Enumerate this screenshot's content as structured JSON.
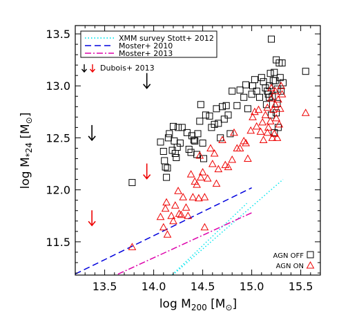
{
  "chart_data": {
    "type": "scatter",
    "title": "",
    "xlabel_main": "log M",
    "xlabel_sub": "200",
    "xlabel_unit_pre": "[M",
    "xlabel_unit_post": "]",
    "ylabel_main": "log M",
    "ylabel_sub": "*24",
    "ylabel_unit_pre": "[M",
    "ylabel_unit_post": "]",
    "xlim": [
      13.2,
      15.7
    ],
    "ylim": [
      11.18,
      13.58
    ],
    "xticks": [
      "13.5",
      "14.0",
      "14.5",
      "15.0",
      "15.5"
    ],
    "yticks": [
      "11.5",
      "12.0",
      "12.5",
      "13.0",
      "13.5"
    ],
    "legend": {
      "position": "top-left",
      "entries": [
        {
          "label": "XMM survey Stott+ 2012",
          "color": "#00e5ee",
          "dash": "dotted"
        },
        {
          "label": "Moster+ 2010",
          "color": "#0000dd",
          "dash": "dashed"
        },
        {
          "label": "Moster+ 2013",
          "color": "#dd00aa",
          "dash": "dashdot"
        }
      ],
      "dubois_label": "Dubois+ 2013"
    },
    "corner_legend": {
      "position": "bottom-right",
      "agn_off": "AGN OFF",
      "agn_on": "AGN ON"
    },
    "lines": [
      {
        "name": "XMM survey Stott+ 2012",
        "color": "#00e5ee",
        "dash": "dotted",
        "x": [
          14.12,
          15.32
        ],
        "y": [
          11.12,
          12.1
        ]
      },
      {
        "name": "XMM survey Stott+ 2012",
        "color": "#00e5ee",
        "dash": "dotted",
        "x": [
          14.12,
          14.95
        ],
        "y": [
          11.12,
          11.87
        ]
      },
      {
        "name": "Moster+ 2010",
        "color": "#0000dd",
        "dash": "dashed",
        "x": [
          13.2,
          15.0
        ],
        "y": [
          11.19,
          12.02
        ]
      },
      {
        "name": "Moster+ 2013",
        "color": "#dd00aa",
        "dash": "dashdot",
        "x": [
          13.2,
          15.0
        ],
        "y": [
          11.0,
          11.78
        ]
      }
    ],
    "arrows": {
      "color_off": "#000000",
      "color_on": "#ee0000",
      "off": [
        {
          "x": 13.93,
          "y": 13.05
        },
        {
          "x": 13.37,
          "y": 12.55
        }
      ],
      "on": [
        {
          "x": 13.93,
          "y": 12.18
        },
        {
          "x": 13.37,
          "y": 11.73
        }
      ]
    },
    "series": [
      {
        "name": "AGN OFF",
        "marker": "square",
        "color": "#000000",
        "points": [
          [
            13.78,
            12.07
          ],
          [
            14.07,
            12.46
          ],
          [
            14.1,
            12.37
          ],
          [
            14.11,
            12.28
          ],
          [
            14.12,
            12.22
          ],
          [
            14.13,
            12.12
          ],
          [
            14.14,
            12.21
          ],
          [
            14.15,
            12.5
          ],
          [
            14.16,
            12.54
          ],
          [
            14.19,
            12.38
          ],
          [
            14.2,
            12.61
          ],
          [
            14.21,
            12.47
          ],
          [
            14.22,
            12.35
          ],
          [
            14.23,
            12.31
          ],
          [
            14.24,
            12.41
          ],
          [
            14.25,
            12.6
          ],
          [
            14.27,
            12.45
          ],
          [
            14.29,
            12.6
          ],
          [
            14.34,
            12.55
          ],
          [
            14.36,
            12.39
          ],
          [
            14.38,
            12.36
          ],
          [
            14.39,
            12.52
          ],
          [
            14.41,
            12.48
          ],
          [
            14.42,
            12.47
          ],
          [
            14.44,
            12.34
          ],
          [
            14.45,
            12.54
          ],
          [
            14.47,
            12.66
          ],
          [
            14.48,
            12.82
          ],
          [
            14.5,
            12.45
          ],
          [
            14.51,
            12.3
          ],
          [
            14.53,
            12.72
          ],
          [
            14.57,
            12.71
          ],
          [
            14.59,
            12.6
          ],
          [
            14.62,
            12.63
          ],
          [
            14.64,
            12.78
          ],
          [
            14.66,
            12.64
          ],
          [
            14.68,
            12.5
          ],
          [
            14.7,
            12.8
          ],
          [
            14.72,
            12.68
          ],
          [
            14.74,
            12.81
          ],
          [
            14.76,
            12.72
          ],
          [
            14.78,
            12.54
          ],
          [
            14.8,
            12.95
          ],
          [
            14.85,
            12.81
          ],
          [
            14.88,
            12.96
          ],
          [
            14.92,
            12.89
          ],
          [
            14.94,
            13.01
          ],
          [
            14.96,
            12.78
          ],
          [
            15.0,
            12.92
          ],
          [
            15.01,
            13.0
          ],
          [
            15.03,
            13.06
          ],
          [
            15.05,
            12.95
          ],
          [
            15.08,
            12.89
          ],
          [
            15.1,
            13.08
          ],
          [
            15.12,
            13.04
          ],
          [
            15.14,
            12.98
          ],
          [
            15.16,
            12.95
          ],
          [
            15.17,
            12.92
          ],
          [
            15.18,
            13.0
          ],
          [
            15.19,
            13.12
          ],
          [
            15.2,
            13.45
          ],
          [
            15.21,
            12.9
          ],
          [
            15.22,
            13.05
          ],
          [
            15.23,
            12.55
          ],
          [
            15.24,
            13.05
          ],
          [
            15.25,
            13.25
          ],
          [
            15.26,
            12.97
          ],
          [
            15.27,
            12.6
          ],
          [
            15.28,
            13.22
          ],
          [
            15.29,
            13.08
          ],
          [
            15.3,
            12.95
          ],
          [
            15.31,
            13.22
          ],
          [
            15.32,
            13.03
          ],
          [
            15.55,
            13.14
          ],
          [
            15.2,
            12.72
          ],
          [
            15.26,
            12.83
          ],
          [
            15.18,
            12.89
          ],
          [
            15.15,
            12.82
          ],
          [
            15.25,
            12.74
          ],
          [
            15.23,
            13.13
          ]
        ]
      },
      {
        "name": "AGN ON",
        "marker": "triangle",
        "color": "#ee0000",
        "points": [
          [
            13.78,
            11.45
          ],
          [
            14.07,
            11.74
          ],
          [
            14.1,
            11.64
          ],
          [
            14.12,
            11.82
          ],
          [
            14.13,
            11.88
          ],
          [
            14.14,
            11.57
          ],
          [
            14.18,
            11.75
          ],
          [
            14.2,
            11.7
          ],
          [
            14.22,
            11.85
          ],
          [
            14.25,
            11.99
          ],
          [
            14.26,
            11.77
          ],
          [
            14.28,
            11.76
          ],
          [
            14.3,
            11.93
          ],
          [
            14.33,
            11.83
          ],
          [
            14.35,
            11.75
          ],
          [
            14.38,
            12.15
          ],
          [
            14.4,
            11.93
          ],
          [
            14.42,
            12.08
          ],
          [
            14.44,
            12.05
          ],
          [
            14.46,
            11.92
          ],
          [
            14.47,
            12.33
          ],
          [
            14.48,
            12.12
          ],
          [
            14.5,
            12.17
          ],
          [
            14.52,
            11.64
          ],
          [
            14.52,
            11.93
          ],
          [
            14.55,
            12.11
          ],
          [
            14.58,
            12.4
          ],
          [
            14.6,
            12.25
          ],
          [
            14.62,
            12.35
          ],
          [
            14.64,
            12.06
          ],
          [
            14.66,
            12.2
          ],
          [
            14.7,
            12.48
          ],
          [
            14.73,
            12.24
          ],
          [
            14.76,
            12.22
          ],
          [
            14.8,
            12.29
          ],
          [
            14.82,
            12.55
          ],
          [
            14.85,
            12.4
          ],
          [
            14.88,
            12.4
          ],
          [
            14.92,
            12.47
          ],
          [
            14.94,
            12.45
          ],
          [
            14.96,
            12.3
          ],
          [
            14.99,
            12.57
          ],
          [
            15.01,
            12.7
          ],
          [
            15.03,
            12.75
          ],
          [
            15.05,
            12.61
          ],
          [
            15.07,
            12.77
          ],
          [
            15.09,
            12.56
          ],
          [
            15.11,
            12.65
          ],
          [
            15.14,
            12.72
          ],
          [
            15.16,
            12.79
          ],
          [
            15.17,
            12.6
          ],
          [
            15.19,
            12.66
          ],
          [
            15.2,
            12.88
          ],
          [
            15.21,
            12.5
          ],
          [
            15.22,
            12.77
          ],
          [
            15.23,
            12.54
          ],
          [
            15.24,
            12.95
          ],
          [
            15.25,
            12.69
          ],
          [
            15.26,
            12.5
          ],
          [
            15.27,
            12.87
          ],
          [
            15.28,
            12.63
          ],
          [
            15.29,
            12.78
          ],
          [
            15.3,
            13.0
          ],
          [
            15.31,
            12.92
          ],
          [
            15.55,
            12.74
          ],
          [
            15.12,
            12.48
          ],
          [
            15.16,
            12.55
          ],
          [
            15.24,
            12.82
          ],
          [
            15.2,
            12.98
          ]
        ]
      }
    ]
  }
}
